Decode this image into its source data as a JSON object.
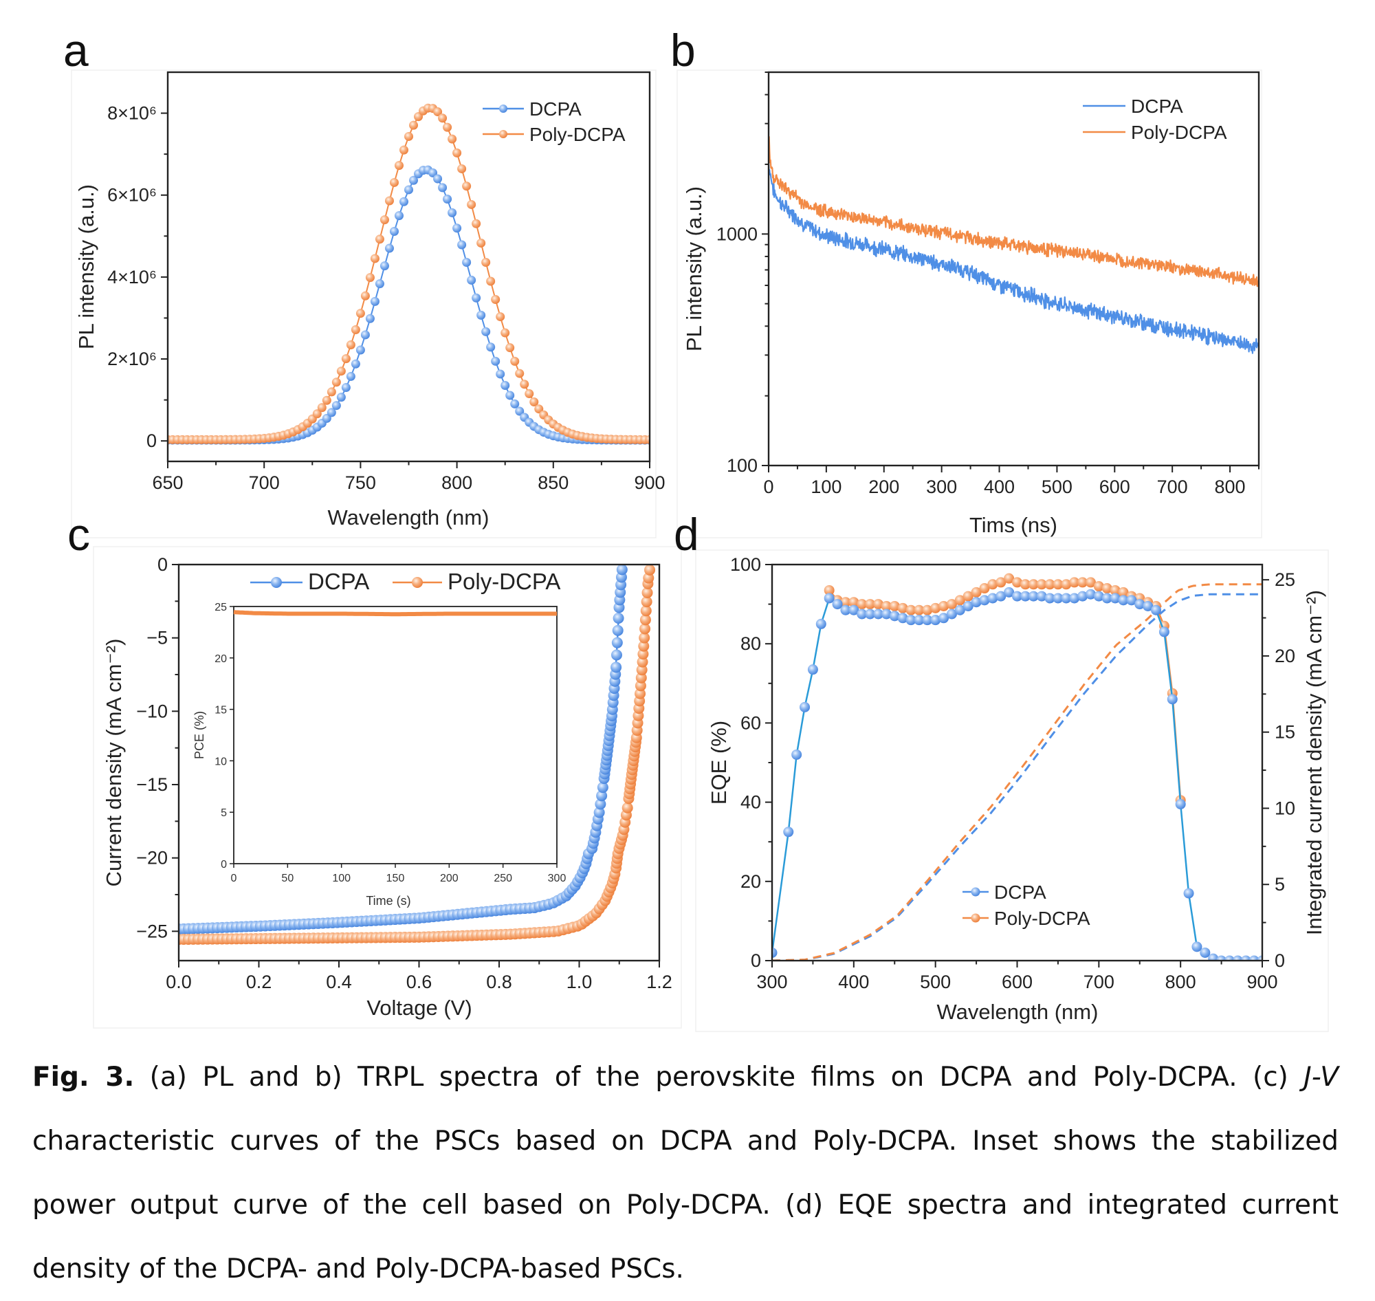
{
  "figure": {
    "caption": {
      "label": "Fig. 3.",
      "part1": " (a) PL and b) TRPL spectra of the perovskite films on DCPA and Poly-DCPA. (c) ",
      "italic": "J-V",
      "part2": " characteristic curves of the PSCs based on DCPA and Poly-DCPA. Inset shows the stabilized power output curve of the cell based on Poly-DCPA. (d) EQE spectra and integrated current density of the DCPA- and Poly-DCPA-based PSCs."
    },
    "colors": {
      "DCPA": "#4f8fe6",
      "Poly-DCPA": "#f28a45"
    }
  },
  "chart_data": [
    {
      "panel": "a",
      "type": "line",
      "title": "",
      "xlabel": "Wavelength (nm)",
      "ylabel": "PL intensity (a.u.)",
      "xlim": [
        650,
        900
      ],
      "ylim": [
        -500000,
        9000000
      ],
      "xticks": [
        650,
        700,
        750,
        800,
        850,
        900
      ],
      "xtick_labels": [
        "650",
        "700",
        "750",
        "800",
        "850",
        "900"
      ],
      "yticks": [
        0,
        2000000,
        4000000,
        6000000,
        8000000
      ],
      "ytick_labels": [
        "0",
        "2×10⁶",
        "4×10⁶",
        "6×10⁶",
        "8×10⁶"
      ],
      "legend": {
        "position": "top-right",
        "entries": [
          "DCPA",
          "Poly-DCPA"
        ],
        "style": "line+marker"
      },
      "grid": false,
      "x_step": 2.5,
      "series": [
        {
          "name": "DCPA",
          "peak_x": 784,
          "peak_y": 6600000,
          "fwhm_nm": 54,
          "baseline": 20000,
          "marker": "sphere"
        },
        {
          "name": "Poly-DCPA",
          "peak_x": 786,
          "peak_y": 8100000,
          "fwhm_nm": 61,
          "baseline": 30000,
          "marker": "sphere"
        }
      ]
    },
    {
      "panel": "b",
      "type": "line",
      "title": "",
      "xlabel": "Tims (ns)",
      "ylabel": "PL intensity (a.u.)",
      "xlim": [
        0,
        850
      ],
      "ylim": [
        100,
        5000
      ],
      "yscale": "log",
      "xticks": [
        0,
        100,
        200,
        300,
        400,
        500,
        600,
        700,
        800
      ],
      "xtick_labels": [
        "0",
        "100",
        "200",
        "300",
        "400",
        "500",
        "600",
        "700",
        "800"
      ],
      "yticks": [
        100,
        1000
      ],
      "ytick_labels": [
        "100",
        "1000"
      ],
      "legend": {
        "position": "top-right",
        "entries": [
          "DCPA",
          "Poly-DCPA"
        ],
        "style": "line"
      },
      "grid": false,
      "series": [
        {
          "name": "DCPA",
          "x": [
            0,
            5,
            10,
            24,
            64,
            100,
            200,
            344,
            400,
            500,
            600,
            700,
            800,
            850
          ],
          "y": [
            2000,
            1700,
            1500,
            1335,
            1086,
            980,
            860,
            690,
            600,
            500,
            440,
            390,
            345,
            324
          ],
          "noise": 0.06
        },
        {
          "name": "Poly-DCPA",
          "x": [
            0,
            2,
            5,
            10,
            24,
            64,
            100,
            200,
            344,
            400,
            500,
            600,
            700,
            800,
            850
          ],
          "y": [
            2800,
            2100,
            1900,
            1750,
            1607,
            1335,
            1254,
            1120,
            970,
            913,
            850,
            780,
            720,
            660,
            620
          ],
          "noise": 0.05
        }
      ]
    },
    {
      "panel": "c",
      "type": "line",
      "title": "",
      "xlabel": "Voltage (V)",
      "ylabel": "Current density (mA cm⁻²)",
      "xlim": [
        0,
        1.2
      ],
      "ylim": [
        -27,
        0
      ],
      "xticks": [
        0,
        0.2,
        0.4,
        0.6,
        0.8,
        1.0,
        1.2
      ],
      "xtick_labels": [
        "0.0",
        "0.2",
        "0.4",
        "0.6",
        "0.8",
        "1.0",
        "1.2"
      ],
      "yticks": [
        0,
        -5,
        -10,
        -15,
        -20,
        -25
      ],
      "ytick_labels": [
        "0",
        "−5",
        "−10",
        "−15",
        "−20",
        "−25"
      ],
      "legend": {
        "position": "top-center",
        "entries": [
          "DCPA",
          "Poly-DCPA"
        ],
        "style": "line+marker"
      },
      "grid": false,
      "series": [
        {
          "name": "DCPA",
          "x": [
            0,
            0.2,
            0.4,
            0.6,
            0.829,
            0.887,
            0.933,
            0.967,
            0.99,
            1.005,
            1.016,
            1.024,
            1.03,
            1.04,
            1.05,
            1.06,
            1.07,
            1.082,
            1.092,
            1.099,
            1.108
          ],
          "y": [
            -24.85,
            -24.65,
            -24.4,
            -24.1,
            -23.5,
            -23.4,
            -23.1,
            -22.6,
            -21.9,
            -21.2,
            -20.5,
            -19.6,
            -19.6,
            -18.4,
            -16.9,
            -15.0,
            -12.9,
            -10.2,
            -7.0,
            -3.1,
            0
          ]
        },
        {
          "name": "Poly-DCPA",
          "x": [
            0,
            0.2,
            0.4,
            0.6,
            0.829,
            0.945,
            1.002,
            1.041,
            1.065,
            1.082,
            1.091,
            1.097,
            1.11,
            1.121,
            1.131,
            1.143,
            1.152,
            1.162,
            1.172,
            1.178
          ],
          "y": [
            -25.55,
            -25.5,
            -25.45,
            -25.4,
            -25.2,
            -25.0,
            -24.6,
            -23.8,
            -22.9,
            -21.8,
            -20.9,
            -19.6,
            -18.3,
            -16.5,
            -14.3,
            -11.8,
            -8.8,
            -5.2,
            -1.1,
            0
          ]
        }
      ],
      "inset": {
        "type": "line",
        "xlabel": "Time (s)",
        "ylabel": "PCE (%)",
        "xlim": [
          0,
          300
        ],
        "ylim": [
          0,
          25
        ],
        "xticks": [
          0,
          50,
          100,
          150,
          200,
          250,
          300
        ],
        "xtick_labels": [
          "0",
          "50",
          "100",
          "150",
          "200",
          "250",
          "300"
        ],
        "yticks": [
          0,
          5,
          10,
          15,
          20,
          25
        ],
        "ytick_labels": [
          "0",
          "5",
          "10",
          "15",
          "20",
          "25"
        ],
        "series": [
          {
            "name": "Poly-DCPA",
            "x": [
              0,
              20,
              50,
              100,
              150,
              200,
              250,
              300
            ],
            "y": [
              24.45,
              24.35,
              24.3,
              24.3,
              24.25,
              24.3,
              24.3,
              24.3
            ]
          }
        ]
      }
    },
    {
      "panel": "d",
      "type": "line",
      "title": "",
      "xlabel": "Wavelength (nm)",
      "ylabel": "EQE (%)",
      "ylabel_right": "Integrated current density (mA cm⁻²)",
      "xlim": [
        300,
        900
      ],
      "ylim": [
        0,
        100
      ],
      "ylim_right": [
        0,
        26
      ],
      "xticks": [
        300,
        400,
        500,
        600,
        700,
        800,
        900
      ],
      "xtick_labels": [
        "300",
        "400",
        "500",
        "600",
        "700",
        "800",
        "900"
      ],
      "yticks": [
        0,
        20,
        40,
        60,
        80,
        100
      ],
      "ytick_labels": [
        "0",
        "20",
        "40",
        "60",
        "80",
        "100"
      ],
      "yticks_right": [
        0,
        5,
        10,
        15,
        20,
        25
      ],
      "ytick_labels_right": [
        "0",
        "5",
        "10",
        "15",
        "20",
        "25"
      ],
      "legend": {
        "position": "bottom-center",
        "entries": [
          "DCPA",
          "Poly-DCPA"
        ],
        "style": "line+marker"
      },
      "grid": false,
      "series": [
        {
          "name": "DCPA",
          "axis": "left",
          "style": "solid+marker",
          "x": [
            300,
            320,
            330,
            340,
            350,
            360,
            370,
            380,
            390,
            400,
            410,
            420,
            430,
            440,
            450,
            460,
            470,
            480,
            490,
            500,
            510,
            520,
            530,
            540,
            550,
            560,
            570,
            580,
            590,
            600,
            610,
            620,
            630,
            640,
            650,
            660,
            670,
            680,
            690,
            700,
            710,
            720,
            730,
            740,
            750,
            760,
            770,
            780,
            790,
            800,
            810,
            820,
            830,
            840,
            850,
            860,
            870,
            880,
            890,
            900
          ],
          "y": [
            2,
            32.5,
            52,
            64,
            73.5,
            85,
            91.5,
            90,
            88.5,
            88.5,
            87.5,
            87.5,
            87.5,
            87.5,
            87,
            86.5,
            86,
            86,
            86,
            86,
            86.5,
            87.5,
            88.5,
            89.5,
            90.5,
            91,
            91.5,
            92,
            93,
            92,
            92,
            92,
            92,
            91.5,
            91.5,
            91.5,
            91.5,
            92,
            92.5,
            92,
            91.5,
            91.5,
            91,
            91,
            90,
            89.5,
            88.5,
            83,
            66,
            39.5,
            17,
            3.5,
            2,
            0.5,
            0,
            0,
            0,
            0,
            0,
            0
          ]
        },
        {
          "name": "Poly-DCPA",
          "axis": "left",
          "style": "solid+marker",
          "x": [
            370,
            380,
            390,
            400,
            410,
            420,
            430,
            440,
            450,
            460,
            470,
            480,
            490,
            500,
            510,
            520,
            530,
            540,
            550,
            560,
            570,
            580,
            590,
            600,
            610,
            620,
            630,
            640,
            650,
            660,
            670,
            680,
            690,
            700,
            710,
            720,
            730,
            740,
            750,
            760,
            770,
            780,
            790,
            800
          ],
          "y": [
            93.5,
            91,
            90.5,
            90.5,
            90,
            90,
            90,
            89.5,
            89.5,
            89,
            88.5,
            88.5,
            88.5,
            89,
            89.5,
            90,
            91,
            92,
            93,
            94,
            95,
            95.5,
            96.5,
            95.5,
            95,
            95,
            95,
            95,
            95,
            95,
            95.5,
            95.5,
            95.5,
            94.5,
            94,
            93.5,
            93,
            92,
            91.5,
            90.5,
            89.5,
            84.5,
            67.5,
            40.5
          ]
        },
        {
          "name": "DCPA integrated",
          "axis": "right",
          "style": "dashed",
          "x": [
            300,
            340,
            376,
            420,
            453,
            491,
            530,
            568,
            606,
            644,
            683,
            721,
            759,
            780,
            797,
            815,
            836,
            860,
            900
          ],
          "y": [
            0,
            0.05,
            0.45,
            1.6,
            2.85,
            5.1,
            7.5,
            9.7,
            12.2,
            14.9,
            17.6,
            20.0,
            22.0,
            23.0,
            23.6,
            23.95,
            24.05,
            24.05,
            24.05
          ]
        },
        {
          "name": "Poly-DCPA integrated",
          "axis": "right",
          "style": "dashed",
          "x": [
            300,
            340,
            376,
            420,
            453,
            491,
            530,
            568,
            606,
            644,
            683,
            721,
            759,
            780,
            797,
            815,
            836,
            860,
            900
          ],
          "y": [
            0,
            0.06,
            0.5,
            1.7,
            2.95,
            5.3,
            7.8,
            10.1,
            12.7,
            15.4,
            18.2,
            20.7,
            22.4,
            23.5,
            24.3,
            24.6,
            24.7,
            24.7,
            24.7
          ]
        }
      ]
    }
  ]
}
